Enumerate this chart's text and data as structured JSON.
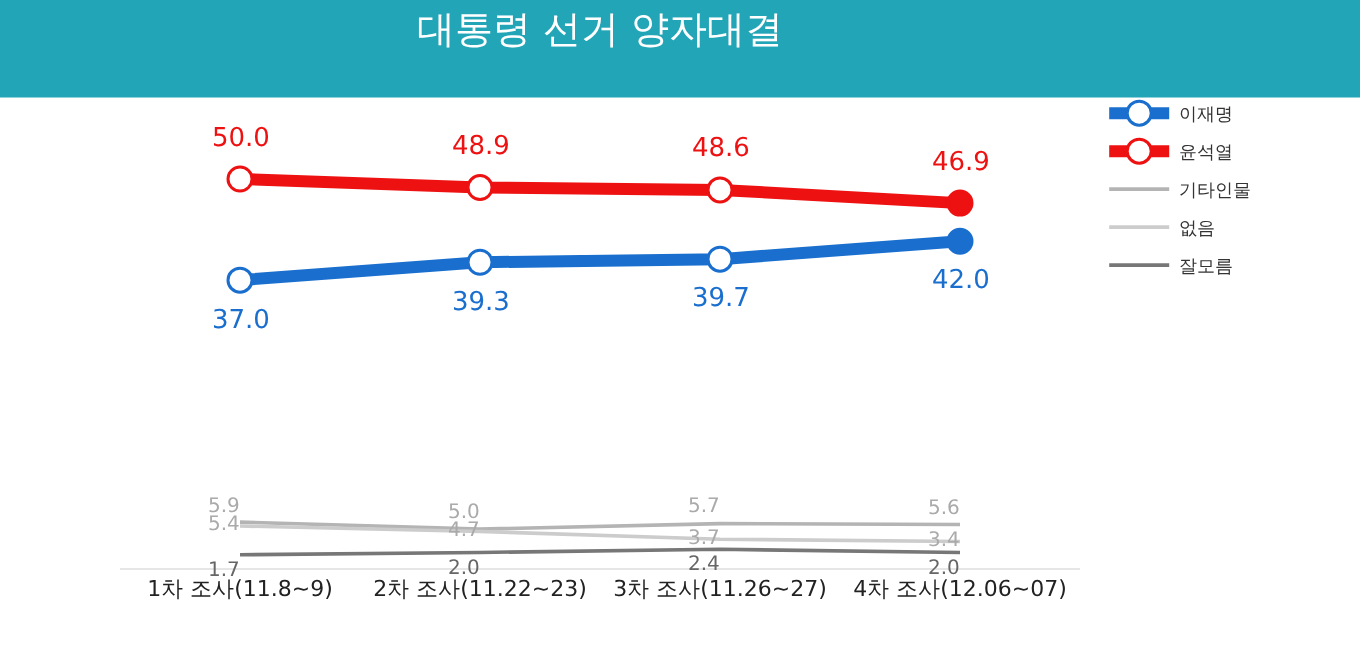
{
  "chart_data": {
    "type": "line",
    "title": "대통령 선거 양자대결",
    "categories": [
      "1차 조사(11.8~9)",
      "2차 조사(11.22~23)",
      "3차 조사(11.26~27)",
      "4차 조사(12.06~07)"
    ],
    "legend": "top right",
    "grid": false,
    "marker": "circle",
    "series": [
      {
        "name": "이재명",
        "color": "#1a6fce",
        "values": [
          37.0,
          39.3,
          39.7,
          42.0
        ],
        "value_labels": [
          "37.0",
          "39.3",
          "39.7",
          "42.0"
        ]
      },
      {
        "name": "윤석열",
        "color": "#ee1111",
        "values": [
          50.0,
          48.9,
          48.6,
          46.9
        ],
        "value_labels": [
          "50.0",
          "48.9",
          "48.6",
          "46.9"
        ]
      },
      {
        "name": "기타인물",
        "color": "#b4b4b4",
        "marker": "none",
        "values": [
          5.9,
          5.0,
          5.7,
          5.6
        ],
        "value_labels": [
          "5.9",
          "5.0",
          "5.7",
          "5.6"
        ]
      },
      {
        "name": "없음",
        "color": "#cccccc",
        "marker": "none",
        "values": [
          5.4,
          4.7,
          3.7,
          3.4
        ],
        "value_labels": [
          "5.4",
          "4.7",
          "3.7",
          "3.4"
        ]
      },
      {
        "name": "잘모름",
        "color": "#777777",
        "marker": "none",
        "values": [
          1.7,
          2.0,
          2.4,
          2.0
        ],
        "value_labels": [
          "1.7",
          "2.0",
          "2.4",
          "2.0"
        ]
      }
    ]
  }
}
